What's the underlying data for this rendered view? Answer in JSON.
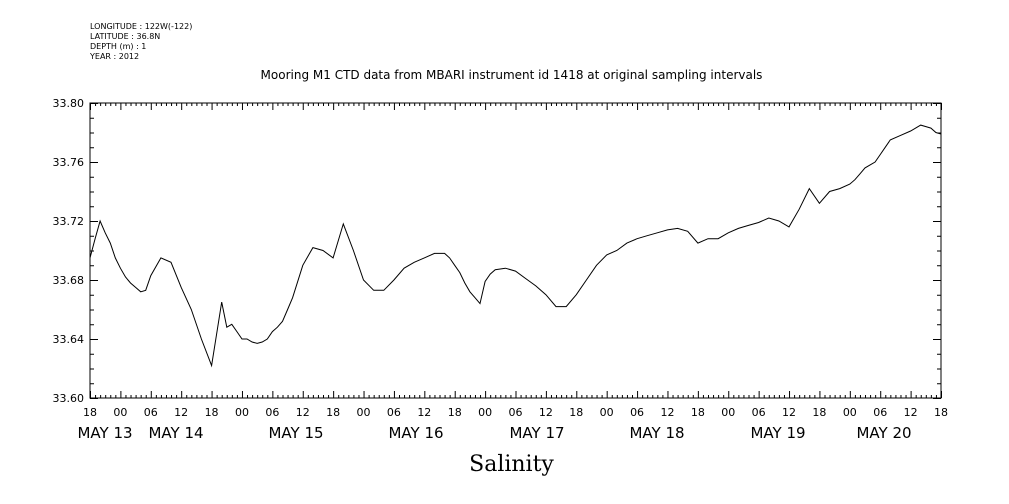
{
  "meta": {
    "longitude": "LONGITUDE : 122W(-122)",
    "latitude": "LATITUDE : 36.8N",
    "depth": "DEPTH (m) : 1",
    "year": "YEAR : 2012"
  },
  "chart_data": {
    "type": "line",
    "title": "Mooring M1 CTD data from MBARI instrument id 1418 at original sampling intervals",
    "xlabel": "Salinity",
    "ylabel": "",
    "ylim": [
      33.6,
      33.8
    ],
    "y_ticks": [
      "33.60",
      "33.64",
      "33.68",
      "33.72",
      "33.76",
      "33.80"
    ],
    "x_range_hours": [
      0,
      168
    ],
    "x_hour_ticks": [
      "18",
      "00",
      "06",
      "12",
      "18",
      "00",
      "06",
      "12",
      "18",
      "00",
      "06",
      "12",
      "18",
      "00",
      "06",
      "12",
      "18",
      "00",
      "06",
      "12",
      "18",
      "00",
      "06",
      "12",
      "18",
      "00",
      "06",
      "12",
      "18"
    ],
    "x_day_labels": [
      "MAY 13",
      "MAY 14",
      "MAY 15",
      "MAY 16",
      "MAY 17",
      "MAY 18",
      "MAY 19",
      "MAY 20"
    ],
    "grid": false,
    "series": [
      {
        "x": [
          0,
          1,
          2,
          3,
          4,
          5,
          6,
          7,
          8,
          9,
          10,
          11,
          12,
          14,
          16,
          18,
          20,
          22,
          24,
          26,
          27,
          28,
          29,
          30,
          31,
          32,
          33,
          34,
          35,
          36,
          37,
          38,
          39,
          40,
          42,
          44,
          46,
          48,
          50,
          52,
          54,
          56,
          58,
          60,
          62,
          64,
          66,
          68,
          70,
          71,
          72,
          73,
          74,
          75,
          76,
          77,
          78,
          79,
          80,
          82,
          84,
          86,
          88,
          90,
          92,
          94,
          96,
          98,
          100,
          102,
          104,
          106,
          108,
          110,
          112,
          114,
          116,
          118,
          120,
          122,
          124,
          126,
          128,
          130,
          132,
          134,
          136,
          138,
          140,
          142,
          144,
          146,
          148,
          150,
          151,
          152,
          153,
          154,
          155,
          156,
          157,
          158,
          160,
          162,
          164,
          166,
          167,
          168
        ],
        "y": [
          33.695,
          33.708,
          33.72,
          33.712,
          33.705,
          33.695,
          33.688,
          33.682,
          33.678,
          33.675,
          33.672,
          33.673,
          33.683,
          33.695,
          33.692,
          33.675,
          33.66,
          33.64,
          33.622,
          33.665,
          33.648,
          33.65,
          33.645,
          33.64,
          33.64,
          33.638,
          33.637,
          33.638,
          33.64,
          33.645,
          33.648,
          33.652,
          33.66,
          33.668,
          33.69,
          33.702,
          33.7,
          33.695,
          33.718,
          33.7,
          33.68,
          33.673,
          33.673,
          33.68,
          33.688,
          33.692,
          33.695,
          33.698,
          33.698,
          33.695,
          33.69,
          33.685,
          33.678,
          33.672,
          33.668,
          33.664,
          33.679,
          33.684,
          33.687,
          33.688,
          33.686,
          33.681,
          33.676,
          33.67,
          33.662,
          33.662,
          33.67,
          33.68,
          33.69,
          33.697,
          33.7,
          33.705,
          33.708,
          33.71,
          33.712,
          33.714,
          33.715,
          33.713,
          33.705,
          33.708,
          33.708,
          33.712,
          33.715,
          33.717,
          33.719,
          33.722,
          33.72,
          33.716,
          33.728,
          33.742,
          33.732,
          33.74,
          33.742,
          33.745,
          33.748,
          33.752,
          33.756,
          33.758,
          33.76,
          33.765,
          33.77,
          33.775,
          33.778,
          33.781,
          33.785,
          33.783,
          33.78,
          33.779
        ]
      }
    ]
  }
}
